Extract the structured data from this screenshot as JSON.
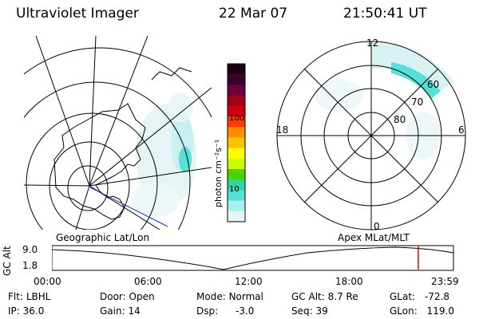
{
  "header": {
    "instrument": "Ultraviolet Imager",
    "date": "22 Mar 07",
    "time": "21:50:41 UT"
  },
  "geo_map": {
    "label": "Geographic Lat/Lon"
  },
  "colorbar": {
    "unit_label": "photon cm⁻²s⁻¹",
    "tick_labels": [
      "100",
      "10"
    ],
    "colors": [
      "#1a0015",
      "#3c0030",
      "#70003a",
      "#a00018",
      "#d00010",
      "#ff3a00",
      "#ff8c00",
      "#ffc000",
      "#ffff00",
      "#c8ff00",
      "#4cd400",
      "#2ed6a0",
      "#58e0d8",
      "#a6f0f0",
      "#e6f4f6"
    ]
  },
  "polar_plot": {
    "label": "Apex MLat/MLT",
    "hour_labels": [
      "12",
      "18",
      "6",
      "0"
    ],
    "lat_labels": [
      "60",
      "70",
      "80"
    ]
  },
  "timeline": {
    "ylabel": "GC Alt",
    "ytick_top": "9.0",
    "ytick_bottom": "1.8",
    "x_labels": [
      "00:00",
      "06:00",
      "12:00",
      "18:00",
      "23:59"
    ],
    "current_marker_time": "21:50:41",
    "marker_color": "#dd0000"
  },
  "info": {
    "flt_label": "Flt:",
    "flt_value": "LBHL",
    "ip_label": "IP:",
    "ip_value": "36.0",
    "door_label": "Door:",
    "door_value": "Open",
    "gain_label": "Gain:",
    "gain_value": "14",
    "mode_label": "Mode:",
    "mode_value": "Normal",
    "dsp_label": "Dsp:",
    "dsp_value": "-3.0",
    "gcalt_label": "GC Alt:",
    "gcalt_value": "8.7 Re",
    "seq_label": "Seq:",
    "seq_value": "39",
    "glat_label": "GLat:",
    "glat_value": "-72.8",
    "glon_label": "GLon:",
    "glon_value": "119.0"
  }
}
